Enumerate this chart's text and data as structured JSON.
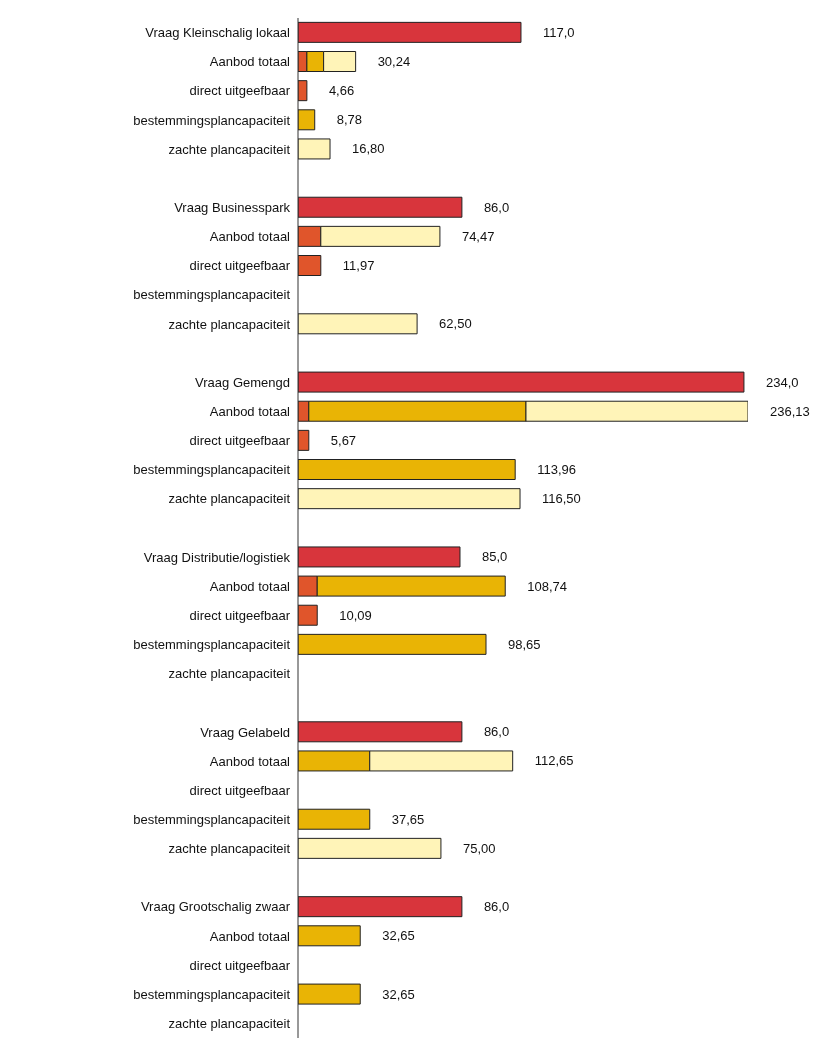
{
  "chart_data": {
    "type": "bar",
    "orientation": "horizontal",
    "stacked": true,
    "categories": [
      "Vraag Kleinschalig lokaal",
      "Aanbod totaal",
      "direct uitgeefbaar",
      "bestemmingsplancapaciteit",
      "zachte plancapaciteit",
      null,
      "Vraag Businesspark",
      "Aanbod totaal",
      "direct uitgeefbaar",
      "bestemmingsplancapaciteit",
      "zachte plancapaciteit",
      null,
      "Vraag Gemengd",
      "Aanbod totaal",
      "direct uitgeefbaar",
      "bestemmingsplancapaciteit",
      "zachte plancapaciteit",
      null,
      "Vraag Distributie/logistiek",
      "Aanbod totaal",
      "direct uitgeefbaar",
      "bestemmingsplancapaciteit",
      "zachte plancapaciteit",
      null,
      "Vraag Gelabeld",
      "Aanbod totaal",
      "direct uitgeefbaar",
      "bestemmingsplancapaciteit",
      "zachte plancapaciteit",
      null,
      "Vraag Grootschalig zwaar",
      "Aanbod totaal",
      "direct uitgeefbaar",
      "bestemmingsplancapaciteit",
      "zachte plancapaciteit"
    ],
    "series": [
      {
        "color": "#d8353c",
        "values": [
          117.0,
          null,
          null,
          null,
          null,
          null,
          86.0,
          null,
          null,
          null,
          null,
          null,
          234.0,
          null,
          null,
          null,
          null,
          null,
          85.0,
          null,
          null,
          null,
          null,
          null,
          86.0,
          null,
          null,
          null,
          null,
          null,
          86.0,
          null,
          null,
          null,
          null
        ],
        "value_labels": [
          "117,0",
          null,
          null,
          null,
          null,
          null,
          "86,0",
          null,
          null,
          null,
          null,
          null,
          "234,0",
          null,
          null,
          null,
          null,
          null,
          "85,0",
          null,
          null,
          null,
          null,
          null,
          "86,0",
          null,
          null,
          null,
          null,
          null,
          "86,0",
          null,
          null,
          null,
          null
        ]
      },
      {
        "color": "#e0552b",
        "values": [
          null,
          4.66,
          4.66,
          null,
          null,
          null,
          null,
          11.97,
          11.97,
          null,
          null,
          null,
          null,
          5.67,
          5.67,
          null,
          null,
          null,
          null,
          10.09,
          10.09,
          null,
          null,
          null,
          null,
          null,
          null,
          null,
          null,
          null,
          null,
          null,
          null,
          null,
          null
        ],
        "value_labels": [
          null,
          null,
          "4,66",
          null,
          null,
          null,
          null,
          null,
          "11,97",
          null,
          null,
          null,
          null,
          null,
          "5,67",
          null,
          null,
          null,
          null,
          null,
          "10,09",
          null,
          null,
          null,
          null,
          null,
          null,
          null,
          null,
          null,
          null,
          null,
          null,
          null,
          null
        ]
      },
      {
        "color": "#e9b405",
        "values": [
          null,
          8.78,
          null,
          8.78,
          null,
          null,
          null,
          null,
          null,
          null,
          null,
          null,
          null,
          113.96,
          null,
          113.96,
          null,
          null,
          null,
          98.65,
          null,
          98.65,
          null,
          null,
          null,
          37.65,
          null,
          37.65,
          null,
          null,
          null,
          32.65,
          null,
          32.65,
          null
        ],
        "value_labels": [
          null,
          null,
          null,
          "8,78",
          null,
          null,
          null,
          null,
          null,
          null,
          null,
          null,
          null,
          null,
          null,
          "113,96",
          null,
          null,
          null,
          null,
          null,
          "98,65",
          null,
          null,
          null,
          null,
          null,
          "37,65",
          null,
          null,
          null,
          null,
          null,
          "32,65",
          null
        ]
      },
      {
        "color": "#fff4b8",
        "values": [
          null,
          16.8,
          null,
          null,
          16.8,
          null,
          null,
          62.5,
          null,
          null,
          62.5,
          null,
          null,
          116.5,
          null,
          null,
          116.5,
          null,
          null,
          null,
          null,
          null,
          null,
          null,
          null,
          75.0,
          null,
          null,
          75.0,
          null,
          null,
          null,
          null,
          null,
          null
        ],
        "value_labels": [
          null,
          null,
          null,
          null,
          "16,80",
          null,
          null,
          null,
          null,
          null,
          "62,50",
          null,
          null,
          null,
          null,
          null,
          "116,50",
          null,
          null,
          null,
          null,
          null,
          null,
          null,
          null,
          null,
          null,
          null,
          "75,00",
          null,
          null,
          null,
          null,
          null,
          null
        ]
      }
    ],
    "totals": [
      null,
      "30,24",
      null,
      null,
      null,
      null,
      null,
      "74,47",
      null,
      null,
      null,
      null,
      null,
      "236,13",
      null,
      null,
      null,
      null,
      null,
      "108,74",
      null,
      null,
      null,
      null,
      null,
      "112,65",
      null,
      null,
      null,
      null,
      null,
      "32,65",
      null,
      null,
      null
    ]
  }
}
